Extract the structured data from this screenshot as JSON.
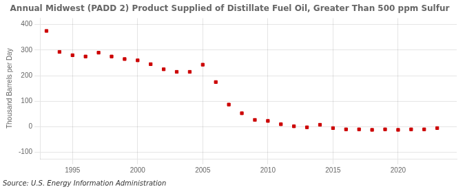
{
  "chart_data": {
    "type": "scatter",
    "title": "Annual Midwest (PADD 2) Product Supplied of Distillate Fuel Oil, Greater Than 500 ppm Sulfur",
    "y_label": "Thousand Barrels per Day",
    "annotations": [
      "Source: U.S. Energy Information Administration"
    ],
    "x": [
      1993,
      1994,
      1995,
      1996,
      1997,
      1998,
      1999,
      2000,
      2001,
      2002,
      2003,
      2004,
      2005,
      2006,
      2007,
      2008,
      2009,
      2010,
      2011,
      2012,
      2013,
      2014,
      2015,
      2016,
      2017,
      2018,
      2019,
      2020,
      2021,
      2022,
      2023
    ],
    "values": [
      375,
      293,
      280,
      275,
      290,
      275,
      265,
      260,
      245,
      225,
      215,
      215,
      243,
      175,
      87,
      53,
      27,
      23,
      10,
      2,
      -2,
      8,
      -5,
      -10,
      -10,
      -12,
      -10,
      -12,
      -10,
      -10,
      -5
    ],
    "color": "#cc0000",
    "marker": "square",
    "xlim": [
      1992.5,
      2024.5
    ],
    "xticks": [
      1995,
      2000,
      2005,
      2010,
      2015,
      2020
    ],
    "ylim": [
      -125,
      425
    ],
    "yticks": [
      -100,
      0,
      100,
      200,
      300,
      400
    ],
    "grid": true
  }
}
